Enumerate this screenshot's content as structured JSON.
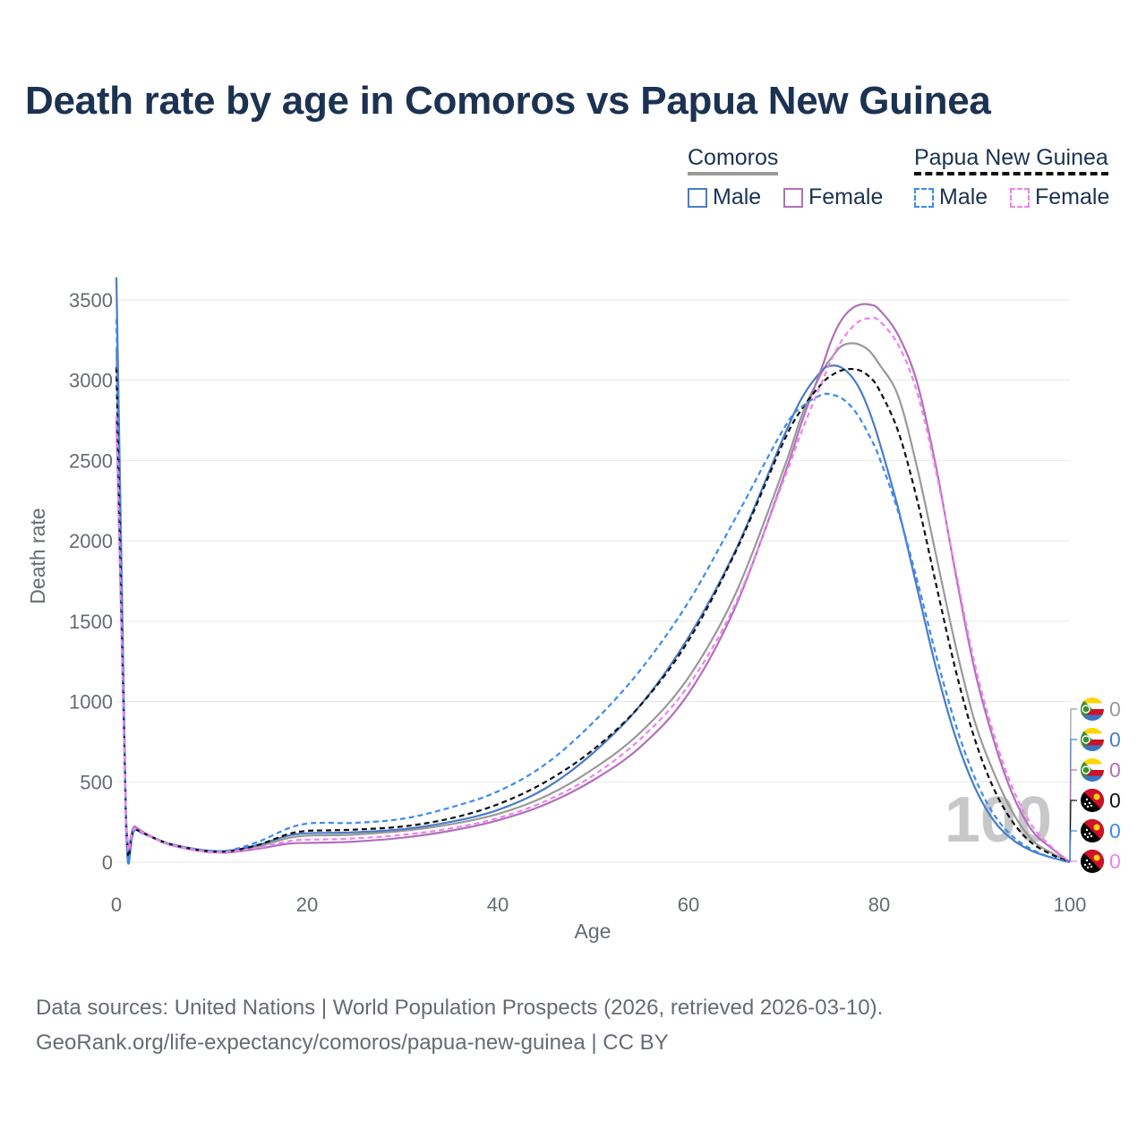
{
  "title": "Death rate by age in Comoros vs Papua New Guinea",
  "legend": {
    "groups": [
      {
        "name": "Comoros",
        "line_style": "solid",
        "underline_color": "#999999",
        "items": [
          {
            "label": "Male",
            "color": "#4a7cc7"
          },
          {
            "label": "Female",
            "color": "#b070bb"
          }
        ]
      },
      {
        "name": "Papua New Guinea",
        "line_style": "dashed",
        "underline_color": "#111111",
        "items": [
          {
            "label": "Male",
            "color": "#3b8bf0"
          },
          {
            "label": "Female",
            "color": "#ee82ee"
          }
        ]
      }
    ]
  },
  "chart_data": {
    "type": "line",
    "title": "Death rate by age in Comoros vs Papua New Guinea",
    "xlabel": "Age",
    "ylabel": "Death rate",
    "xlim": [
      0,
      100
    ],
    "ylim": [
      0,
      3650
    ],
    "xticks": [
      0,
      20,
      40,
      60,
      80,
      100
    ],
    "yticks": [
      0,
      500,
      1000,
      1500,
      2000,
      2500,
      3000,
      3500
    ],
    "grid": true,
    "x": [
      0,
      1,
      2,
      5,
      8,
      10,
      12,
      15,
      18,
      20,
      22,
      25,
      30,
      35,
      40,
      45,
      50,
      55,
      60,
      65,
      70,
      72,
      74,
      75,
      76,
      77,
      78,
      79,
      80,
      82,
      84,
      86,
      88,
      90,
      92,
      94,
      96,
      98,
      100
    ],
    "series": [
      {
        "name": "Comoros Total",
        "country": "Comoros",
        "sex": "Total",
        "style": "solid",
        "color": "#999999",
        "values": [
          3200,
          270,
          215,
          125,
          82,
          68,
          70,
          100,
          150,
          165,
          167,
          172,
          195,
          235,
          300,
          410,
          580,
          810,
          1150,
          1680,
          2450,
          2800,
          3050,
          3140,
          3210,
          3230,
          3220,
          3180,
          3100,
          2900,
          2450,
          1900,
          1350,
          880,
          560,
          310,
          140,
          60,
          0
        ]
      },
      {
        "name": "Comoros Male",
        "country": "Comoros",
        "sex": "Male",
        "style": "solid",
        "color": "#4a7cc7",
        "values": [
          3640,
          250,
          210,
          125,
          85,
          70,
          72,
          110,
          165,
          180,
          182,
          186,
          205,
          250,
          325,
          460,
          680,
          980,
          1400,
          1950,
          2650,
          2900,
          3060,
          3090,
          3080,
          3030,
          2940,
          2800,
          2620,
          2200,
          1700,
          1200,
          780,
          470,
          260,
          140,
          70,
          30,
          0
        ]
      },
      {
        "name": "Comoros Female",
        "country": "Comoros",
        "sex": "Female",
        "style": "solid",
        "color": "#b070bb",
        "values": [
          2750,
          295,
          220,
          120,
          78,
          62,
          62,
          85,
          115,
          120,
          122,
          128,
          152,
          195,
          260,
          360,
          510,
          720,
          1050,
          1600,
          2400,
          2760,
          3080,
          3250,
          3370,
          3440,
          3470,
          3470,
          3440,
          3280,
          2980,
          2450,
          1800,
          1200,
          760,
          420,
          200,
          90,
          0
        ]
      },
      {
        "name": "Papua New Guinea Total",
        "country": "Papua New Guinea",
        "sex": "Total",
        "style": "dashed",
        "color": "#111111",
        "values": [
          3080,
          255,
          205,
          125,
          82,
          67,
          70,
          110,
          175,
          195,
          198,
          203,
          222,
          272,
          360,
          500,
          700,
          980,
          1380,
          1940,
          2620,
          2830,
          2980,
          3030,
          3060,
          3070,
          3060,
          3020,
          2940,
          2680,
          2250,
          1720,
          1200,
          770,
          460,
          250,
          120,
          50,
          0
        ]
      },
      {
        "name": "Papua New Guinea Male",
        "country": "Papua New Guinea",
        "sex": "Male",
        "style": "dashed",
        "color": "#3b8bf0",
        "values": [
          3380,
          240,
          200,
          125,
          84,
          70,
          75,
          130,
          210,
          240,
          245,
          245,
          270,
          340,
          440,
          610,
          870,
          1200,
          1620,
          2150,
          2700,
          2840,
          2910,
          2910,
          2890,
          2840,
          2760,
          2650,
          2520,
          2180,
          1750,
          1280,
          860,
          530,
          300,
          160,
          80,
          30,
          0
        ]
      },
      {
        "name": "Papua New Guinea Female",
        "country": "Papua New Guinea",
        "sex": "Female",
        "style": "dashed",
        "color": "#ee82ee",
        "values": [
          2780,
          270,
          210,
          122,
          80,
          64,
          66,
          90,
          130,
          140,
          142,
          148,
          170,
          210,
          275,
          380,
          540,
          770,
          1100,
          1620,
          2380,
          2700,
          2990,
          3130,
          3240,
          3320,
          3370,
          3385,
          3370,
          3220,
          2920,
          2420,
          1820,
          1240,
          800,
          460,
          230,
          100,
          0
        ]
      }
    ],
    "end_labels": [
      {
        "flag": "comoros-flag-icon",
        "value": "0",
        "color": "#999999"
      },
      {
        "flag": "comoros-flag-icon",
        "value": "0",
        "color": "#4a7cc7"
      },
      {
        "flag": "comoros-flag-icon",
        "value": "0",
        "color": "#b070bb"
      },
      {
        "flag": "papua-new-guinea-flag-icon",
        "value": "0",
        "color": "#111111"
      },
      {
        "flag": "papua-new-guinea-flag-icon",
        "value": "0",
        "color": "#3b8bf0"
      },
      {
        "flag": "papua-new-guinea-flag-icon",
        "value": "0",
        "color": "#ee82ee"
      }
    ],
    "watermark_age": "100"
  },
  "footer": {
    "line1": "Data sources: United Nations | World Population Prospects (2026, retrieved 2026-03-10).",
    "line2": "GeoRank.org/life-expectancy/comoros/papua-new-guinea | CC BY"
  }
}
